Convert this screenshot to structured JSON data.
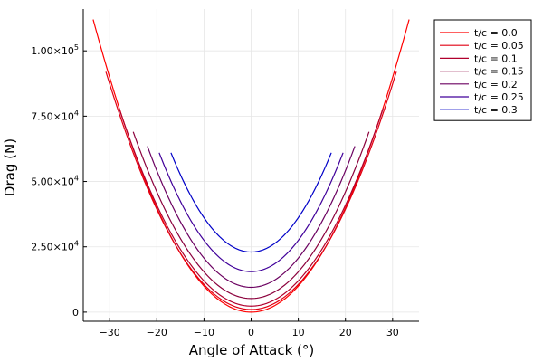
{
  "chart_data": {
    "type": "line",
    "title": "",
    "xlabel": "Angle of Attack (°)",
    "ylabel": "Drag (N)",
    "xlim": [
      -35.6,
      35.6
    ],
    "ylim": [
      -3500,
      116000
    ],
    "grid": true,
    "legend_position": "top-right (outside plot area)",
    "x_ticks": [
      {
        "value": -30,
        "label": "−30"
      },
      {
        "value": -20,
        "label": "−20"
      },
      {
        "value": -10,
        "label": "−10"
      },
      {
        "value": 0,
        "label": "0"
      },
      {
        "value": 10,
        "label": "10"
      },
      {
        "value": 20,
        "label": "20"
      },
      {
        "value": 30,
        "label": "30"
      }
    ],
    "y_ticks": [
      {
        "value": 0,
        "mantissa": "0",
        "exp": ""
      },
      {
        "value": 25000,
        "mantissa": "2.50×10",
        "exp": "4"
      },
      {
        "value": 50000,
        "mantissa": "5.00×10",
        "exp": "4"
      },
      {
        "value": 75000,
        "mantissa": "7.50×10",
        "exp": "4"
      },
      {
        "value": 100000,
        "mantissa": "1.00×10",
        "exp": "5"
      }
    ],
    "series": [
      {
        "name": "t/c = 0.0",
        "color": "#ff0000",
        "x_range": [
          -33.5,
          33.5
        ],
        "y_min": 0,
        "y_at_range_ends": 112000
      },
      {
        "name": "t/c = 0.05",
        "color": "#e00013",
        "x_range": [
          -30.8,
          30.8
        ],
        "y_min": 1000,
        "y_at_range_ends": 92000
      },
      {
        "name": "t/c = 0.1",
        "color": "#b0002d",
        "x_range": [
          -28.0,
          28.0
        ],
        "y_min": 2300,
        "y_at_range_ends": 78000
      },
      {
        "name": "t/c = 0.15",
        "color": "#8b003c",
        "x_range": [
          -25.0,
          25.0
        ],
        "y_min": 5200,
        "y_at_range_ends": 69000
      },
      {
        "name": "t/c = 0.2",
        "color": "#6b0060",
        "x_range": [
          -22.0,
          22.0
        ],
        "y_min": 9500,
        "y_at_range_ends": 63500
      },
      {
        "name": "t/c = 0.25",
        "color": "#40009a",
        "x_range": [
          -19.5,
          19.5
        ],
        "y_min": 15500,
        "y_at_range_ends": 61000
      },
      {
        "name": "t/c = 0.3",
        "color": "#0000c8",
        "x_range": [
          -17.0,
          17.0
        ],
        "y_min": 23000,
        "y_at_range_ends": 61000
      }
    ]
  }
}
